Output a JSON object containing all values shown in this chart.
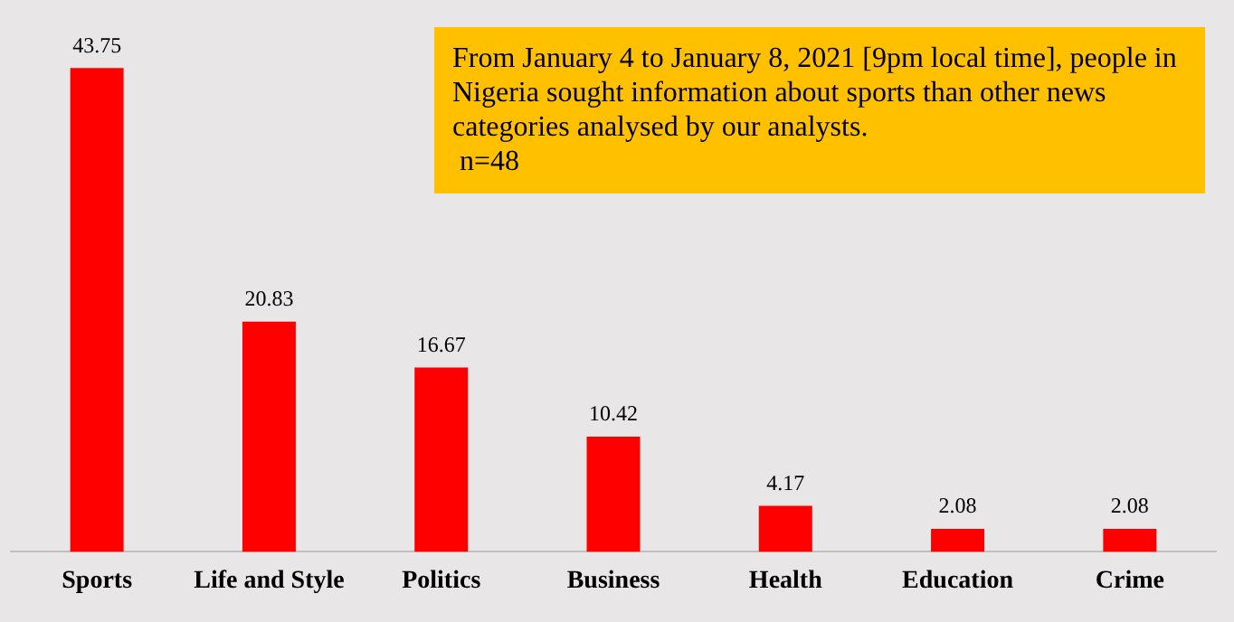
{
  "chart_data": {
    "type": "bar",
    "categories": [
      "Sports",
      "Life and Style",
      "Politics",
      "Business",
      "Health",
      "Education",
      "Crime"
    ],
    "values": [
      43.75,
      20.83,
      16.67,
      10.42,
      4.17,
      2.08,
      2.08
    ],
    "color": "#ff0000",
    "data_labels": true,
    "grid": false,
    "legend": false,
    "annotations": [
      "From January 4 to January 8, 2021 [9pm local time], people in Nigeria sought information about sports than other news categories analysed by our analysts.\n n=48"
    ]
  }
}
